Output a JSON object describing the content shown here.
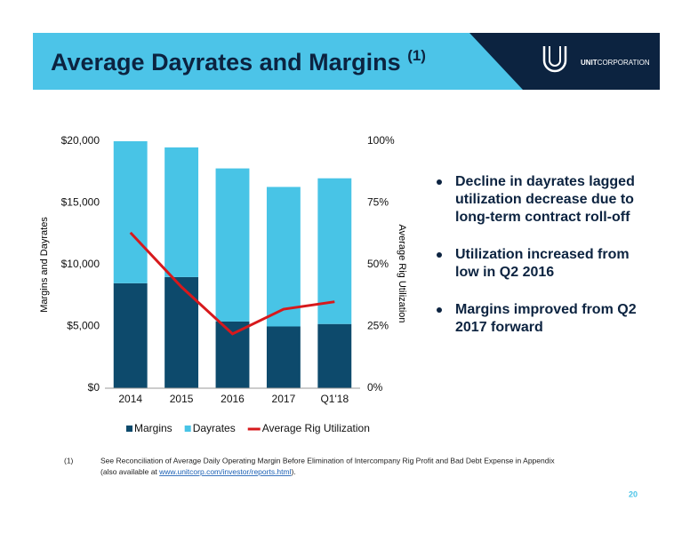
{
  "header": {
    "title": "Average Dayrates and Margins",
    "title_note": "(1)"
  },
  "logo": {
    "name": "UNIT",
    "suffix": "CORPORATION"
  },
  "chart_data": {
    "type": "bar",
    "stacked": true,
    "categories": [
      "2014",
      "2015",
      "2016",
      "2017",
      "Q1'18"
    ],
    "y_label": "Margins and Dayrates",
    "y2_label": "Average Rig Utilization",
    "ylim": [
      0,
      20000
    ],
    "yticks": [
      {
        "value": 0,
        "label": "$0"
      },
      {
        "value": 5000,
        "label": "$5,000"
      },
      {
        "value": 10000,
        "label": "$10,000"
      },
      {
        "value": 15000,
        "label": "$15,000"
      },
      {
        "value": 20000,
        "label": "$20,000"
      }
    ],
    "y2lim": [
      0,
      100
    ],
    "y2ticks": [
      {
        "value": 0,
        "label": "0%"
      },
      {
        "value": 25,
        "label": "25%"
      },
      {
        "value": 50,
        "label": "50%"
      },
      {
        "value": 75,
        "label": "75%"
      },
      {
        "value": 100,
        "label": "100%"
      }
    ],
    "grid": false,
    "legend": "bottom",
    "series": [
      {
        "name": "Margins",
        "type": "bar",
        "color": "#0d4a6c",
        "values": [
          8500,
          9000,
          5400,
          5000,
          5200
        ]
      },
      {
        "name": "Dayrates",
        "type": "bar",
        "color": "#48c4e6",
        "values": [
          11500,
          10500,
          12400,
          11300,
          11800
        ]
      },
      {
        "name": "Average Rig Utilization",
        "type": "line",
        "axis": "y2",
        "color": "#d7191c",
        "values": [
          63,
          41,
          22,
          32,
          35
        ]
      }
    ]
  },
  "bullets": [
    [
      "Decline in dayrates lagged",
      "utilization decrease due to",
      "long-term contract roll-off"
    ],
    [
      "Utilization increased from",
      "low in Q2 2016"
    ],
    [
      "Margins improved from Q2",
      "2017 forward"
    ]
  ],
  "footnote": {
    "marker": "(1)",
    "line1": "See Reconciliation of Average Daily Operating Margin Before Elimination of Intercompany Rig Profit and Bad Debt Expense in Appendix",
    "line2_before": "(also available at ",
    "link": "www.unitcorp.com/investor/reports.html",
    "line2_after": ")."
  },
  "page_number": "20"
}
